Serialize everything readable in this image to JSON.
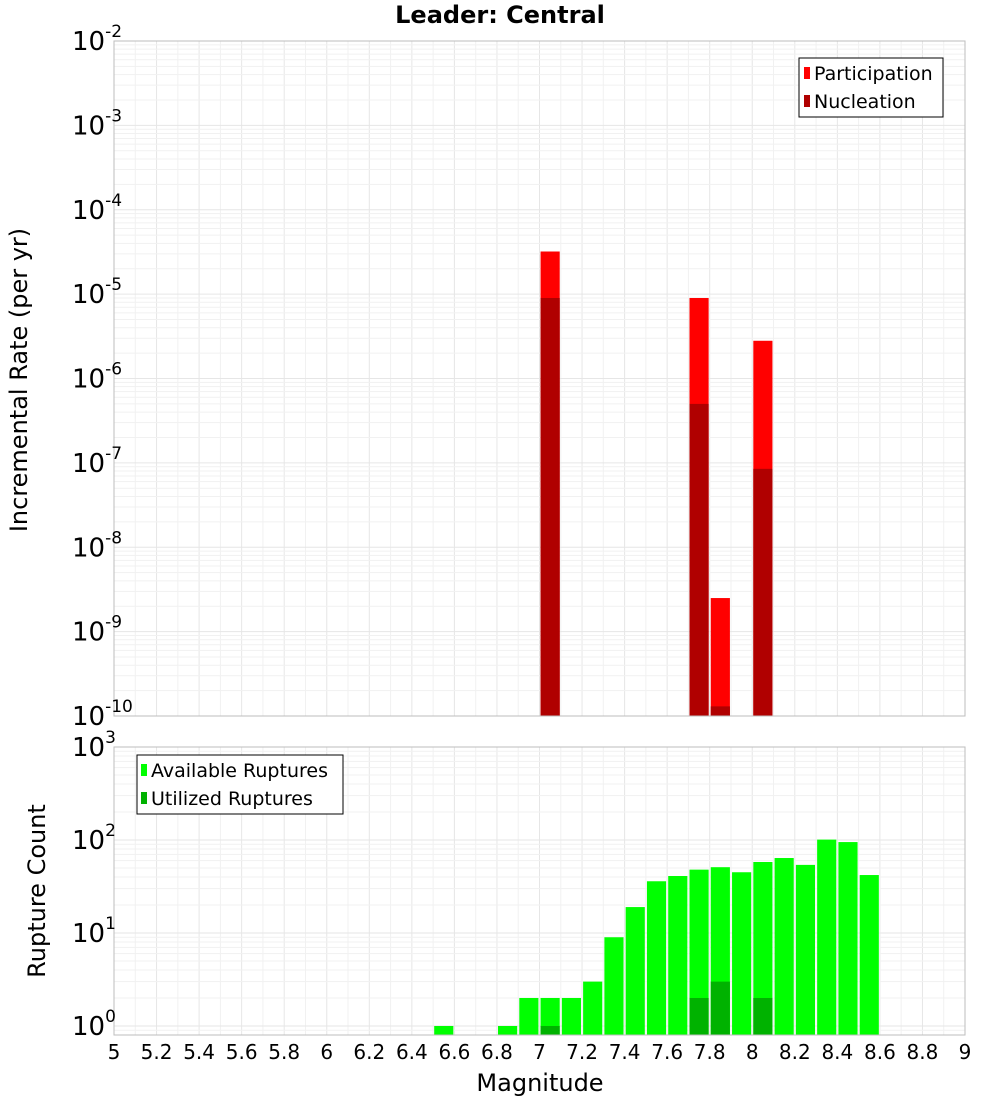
{
  "chart_data": [
    {
      "type": "bar",
      "title": "Leader: Central",
      "xlabel": "",
      "ylabel": "Incremental Rate (per yr)",
      "xlim": [
        5,
        9
      ],
      "ylim": [
        1e-10,
        0.01
      ],
      "yscale": "log",
      "grid": true,
      "legend_position": "top-right",
      "legend": [
        "Participation",
        "Nucleation"
      ],
      "colors": {
        "Participation": "#ff0000",
        "Nucleation": "#b00000"
      },
      "x": [
        7.05,
        7.75,
        7.85,
        8.05
      ],
      "series": [
        {
          "name": "Participation",
          "values": [
            3.2e-05,
            9e-06,
            2.5e-09,
            2.8e-06
          ]
        },
        {
          "name": "Nucleation",
          "values": [
            9e-06,
            5e-07,
            1.3e-10,
            8.5e-08
          ]
        }
      ]
    },
    {
      "type": "bar",
      "title": "",
      "xlabel": "Magnitude",
      "ylabel": "Rupture Count",
      "xlim": [
        5,
        9
      ],
      "ylim": [
        0.8,
        1000
      ],
      "yscale": "log",
      "grid": true,
      "legend_position": "top-left",
      "legend": [
        "Available Ruptures",
        "Utilized Ruptures"
      ],
      "colors": {
        "Available Ruptures": "#00ff00",
        "Utilized Ruptures": "#00b200"
      },
      "x_ticks": [
        "5",
        "5.2",
        "5.4",
        "5.6",
        "5.8",
        "6",
        "6.2",
        "6.4",
        "6.6",
        "6.8",
        "7",
        "7.2",
        "7.4",
        "7.6",
        "7.8",
        "8",
        "8.2",
        "8.4",
        "8.6",
        "8.8",
        "9"
      ],
      "series": [
        {
          "name": "Available Ruptures",
          "x": [
            6.55,
            6.85,
            6.95,
            7.05,
            7.15,
            7.25,
            7.35,
            7.45,
            7.55,
            7.65,
            7.75,
            7.85,
            7.95,
            8.05,
            8.15,
            8.25,
            8.35,
            8.45,
            8.55
          ],
          "values": [
            1,
            1,
            2,
            2,
            2,
            3,
            9,
            19,
            36,
            41,
            48,
            51,
            45,
            58,
            64,
            54,
            101,
            95,
            42
          ]
        },
        {
          "name": "Utilized Ruptures",
          "x": [
            7.05,
            7.75,
            7.85,
            8.05
          ],
          "values": [
            1,
            2,
            3,
            2
          ]
        }
      ]
    }
  ]
}
